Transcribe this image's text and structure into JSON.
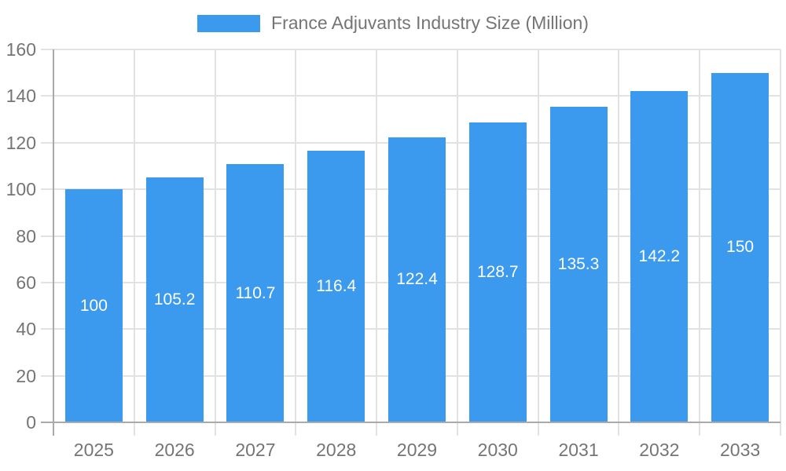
{
  "chart_data": {
    "type": "bar",
    "title": "France Adjuvants Industry Size (Million)",
    "categories": [
      "2025",
      "2026",
      "2027",
      "2028",
      "2029",
      "2030",
      "2031",
      "2032",
      "2033"
    ],
    "values": [
      100,
      105.2,
      110.7,
      116.4,
      122.4,
      128.7,
      135.3,
      142.2,
      150
    ],
    "value_labels": [
      "100",
      "105.2",
      "110.7",
      "116.4",
      "122.4",
      "128.7",
      "135.3",
      "142.2",
      "150"
    ],
    "xlabel": "",
    "ylabel": "",
    "ylim": [
      0,
      160
    ],
    "yticks": [
      0,
      20,
      40,
      60,
      80,
      100,
      120,
      140,
      160
    ],
    "grid": true,
    "legend_position": "top",
    "colors": {
      "bar": "#3B99EE",
      "grid": "#e2e2e2",
      "axis": "#aaaaaa",
      "tick_text": "#757575",
      "legend_text": "#757575",
      "bar_label": "#ffffff",
      "background": "#ffffff"
    }
  }
}
